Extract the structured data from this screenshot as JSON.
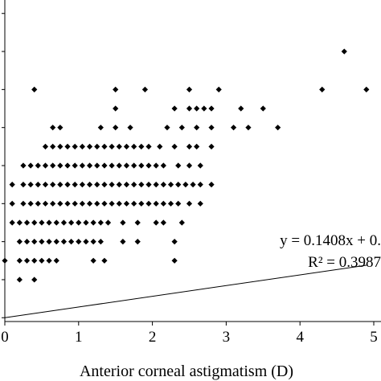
{
  "chart_data": {
    "type": "scatter",
    "xlabel": "Anterior corneal astigmatism (D)",
    "ylabel": "",
    "xlim": [
      0,
      5
    ],
    "ylim": [
      0.45,
      4.55
    ],
    "x_ticks": [
      "0",
      "1",
      "2",
      "3",
      "4",
      "5"
    ],
    "y_ticks": [
      0.5,
      1,
      1.5,
      2,
      2.5,
      3,
      3.5,
      4,
      4.5
    ],
    "grid": false,
    "legend": "none",
    "marker": "diamond",
    "marker_color": "#000000",
    "trendline": {
      "slope": 0.1408,
      "intercept": 0.5
    },
    "annotations": {
      "equation": "y = 0.1408x + 0.",
      "r_squared": "R² = 0.3987"
    },
    "points": [
      [
        4.6,
        4.0
      ],
      [
        0.4,
        3.5
      ],
      [
        1.5,
        3.5
      ],
      [
        1.9,
        3.5
      ],
      [
        2.5,
        3.5
      ],
      [
        2.9,
        3.5
      ],
      [
        4.3,
        3.5
      ],
      [
        4.9,
        3.5
      ],
      [
        1.5,
        3.25
      ],
      [
        2.3,
        3.25
      ],
      [
        2.5,
        3.25
      ],
      [
        2.6,
        3.25
      ],
      [
        2.7,
        3.25
      ],
      [
        2.8,
        3.25
      ],
      [
        3.2,
        3.25
      ],
      [
        3.5,
        3.25
      ],
      [
        0.65,
        3.0
      ],
      [
        0.75,
        3.0
      ],
      [
        1.3,
        3.0
      ],
      [
        1.5,
        3.0
      ],
      [
        1.7,
        3.0
      ],
      [
        2.2,
        3.0
      ],
      [
        2.4,
        3.0
      ],
      [
        2.6,
        3.0
      ],
      [
        2.8,
        3.0
      ],
      [
        3.1,
        3.0
      ],
      [
        3.3,
        3.0
      ],
      [
        3.7,
        3.0
      ],
      [
        0.55,
        2.75
      ],
      [
        0.65,
        2.75
      ],
      [
        0.75,
        2.75
      ],
      [
        0.85,
        2.75
      ],
      [
        0.95,
        2.75
      ],
      [
        1.05,
        2.75
      ],
      [
        1.15,
        2.75
      ],
      [
        1.25,
        2.75
      ],
      [
        1.35,
        2.75
      ],
      [
        1.45,
        2.75
      ],
      [
        1.55,
        2.75
      ],
      [
        1.65,
        2.75
      ],
      [
        1.75,
        2.75
      ],
      [
        1.85,
        2.75
      ],
      [
        1.95,
        2.75
      ],
      [
        2.1,
        2.75
      ],
      [
        2.3,
        2.75
      ],
      [
        2.5,
        2.75
      ],
      [
        2.6,
        2.75
      ],
      [
        2.8,
        2.75
      ],
      [
        0.25,
        2.5
      ],
      [
        0.35,
        2.5
      ],
      [
        0.45,
        2.5
      ],
      [
        0.55,
        2.5
      ],
      [
        0.65,
        2.5
      ],
      [
        0.75,
        2.5
      ],
      [
        0.85,
        2.5
      ],
      [
        0.95,
        2.5
      ],
      [
        1.05,
        2.5
      ],
      [
        1.15,
        2.5
      ],
      [
        1.25,
        2.5
      ],
      [
        1.35,
        2.5
      ],
      [
        1.45,
        2.5
      ],
      [
        1.55,
        2.5
      ],
      [
        1.65,
        2.5
      ],
      [
        1.75,
        2.5
      ],
      [
        1.85,
        2.5
      ],
      [
        1.95,
        2.5
      ],
      [
        2.05,
        2.5
      ],
      [
        2.15,
        2.5
      ],
      [
        2.35,
        2.5
      ],
      [
        2.5,
        2.5
      ],
      [
        2.65,
        2.5
      ],
      [
        0.1,
        2.25
      ],
      [
        0.25,
        2.25
      ],
      [
        0.35,
        2.25
      ],
      [
        0.45,
        2.25
      ],
      [
        0.55,
        2.25
      ],
      [
        0.65,
        2.25
      ],
      [
        0.75,
        2.25
      ],
      [
        0.85,
        2.25
      ],
      [
        0.95,
        2.25
      ],
      [
        1.05,
        2.25
      ],
      [
        1.15,
        2.25
      ],
      [
        1.25,
        2.25
      ],
      [
        1.35,
        2.25
      ],
      [
        1.45,
        2.25
      ],
      [
        1.55,
        2.25
      ],
      [
        1.65,
        2.25
      ],
      [
        1.75,
        2.25
      ],
      [
        1.85,
        2.25
      ],
      [
        1.95,
        2.25
      ],
      [
        2.05,
        2.25
      ],
      [
        2.15,
        2.25
      ],
      [
        2.25,
        2.25
      ],
      [
        2.35,
        2.25
      ],
      [
        2.45,
        2.25
      ],
      [
        2.55,
        2.25
      ],
      [
        2.65,
        2.25
      ],
      [
        2.8,
        2.25
      ],
      [
        0.1,
        2.0
      ],
      [
        0.25,
        2.0
      ],
      [
        0.35,
        2.0
      ],
      [
        0.45,
        2.0
      ],
      [
        0.55,
        2.0
      ],
      [
        0.65,
        2.0
      ],
      [
        0.75,
        2.0
      ],
      [
        0.85,
        2.0
      ],
      [
        0.95,
        2.0
      ],
      [
        1.05,
        2.0
      ],
      [
        1.15,
        2.0
      ],
      [
        1.25,
        2.0
      ],
      [
        1.35,
        2.0
      ],
      [
        1.45,
        2.0
      ],
      [
        1.55,
        2.0
      ],
      [
        1.65,
        2.0
      ],
      [
        1.75,
        2.0
      ],
      [
        1.85,
        2.0
      ],
      [
        1.95,
        2.0
      ],
      [
        2.05,
        2.0
      ],
      [
        2.15,
        2.0
      ],
      [
        2.25,
        2.0
      ],
      [
        2.35,
        2.0
      ],
      [
        2.5,
        2.0
      ],
      [
        2.65,
        2.0
      ],
      [
        0.1,
        1.75
      ],
      [
        0.2,
        1.75
      ],
      [
        0.3,
        1.75
      ],
      [
        0.4,
        1.75
      ],
      [
        0.5,
        1.75
      ],
      [
        0.6,
        1.75
      ],
      [
        0.7,
        1.75
      ],
      [
        0.8,
        1.75
      ],
      [
        0.9,
        1.75
      ],
      [
        1.0,
        1.75
      ],
      [
        1.1,
        1.75
      ],
      [
        1.2,
        1.75
      ],
      [
        1.3,
        1.75
      ],
      [
        1.4,
        1.75
      ],
      [
        1.6,
        1.75
      ],
      [
        1.8,
        1.75
      ],
      [
        2.05,
        1.75
      ],
      [
        2.15,
        1.75
      ],
      [
        2.4,
        1.75
      ],
      [
        0.2,
        1.5
      ],
      [
        0.3,
        1.5
      ],
      [
        0.4,
        1.5
      ],
      [
        0.5,
        1.5
      ],
      [
        0.6,
        1.5
      ],
      [
        0.7,
        1.5
      ],
      [
        0.8,
        1.5
      ],
      [
        0.9,
        1.5
      ],
      [
        1.0,
        1.5
      ],
      [
        1.1,
        1.5
      ],
      [
        1.2,
        1.5
      ],
      [
        1.3,
        1.5
      ],
      [
        1.6,
        1.5
      ],
      [
        1.8,
        1.5
      ],
      [
        2.3,
        1.5
      ],
      [
        0.0,
        1.25
      ],
      [
        0.2,
        1.25
      ],
      [
        0.3,
        1.25
      ],
      [
        0.4,
        1.25
      ],
      [
        0.5,
        1.25
      ],
      [
        0.6,
        1.25
      ],
      [
        0.7,
        1.25
      ],
      [
        1.2,
        1.25
      ],
      [
        1.35,
        1.25
      ],
      [
        2.3,
        1.25
      ],
      [
        0.2,
        1.0
      ],
      [
        0.4,
        1.0
      ]
    ]
  }
}
